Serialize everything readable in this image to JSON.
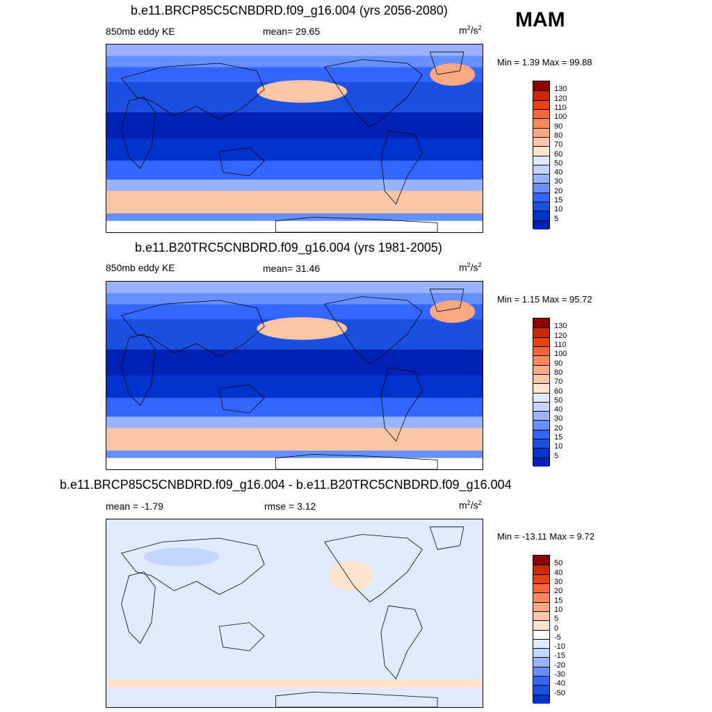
{
  "season": "MAM",
  "colors": {
    "blues": [
      "#00007f",
      "#0022b4",
      "#0033cc",
      "#1a4fe0",
      "#3366ff",
      "#6690ff",
      "#99b3ff",
      "#c3d6ff",
      "#e0ebff"
    ],
    "reds": [
      "#fde4cf",
      "#fcc6a6",
      "#fca880",
      "#fb8a5c",
      "#f8673a",
      "#ea4312",
      "#c72a05",
      "#8b0000"
    ],
    "white": "#ffffff",
    "diff_blues": [
      "#00007f",
      "#0022b4",
      "#0033cc",
      "#1a4fe0",
      "#3366ff",
      "#6690ff",
      "#99b3ff",
      "#c3d6ff",
      "#e0ebff"
    ],
    "diff_reds": [
      "#fde4cf",
      "#fcc6a6",
      "#fca880",
      "#fb8a5c",
      "#f8673a",
      "#ea4312",
      "#c72a05",
      "#8b0000"
    ]
  },
  "panels": [
    {
      "title": "b.e11.BRCP85C5CNBDRD.f09_g16.004 (yrs 2056-2080)",
      "left_label": "850mb eddy KE",
      "center_label": "mean=  29.65",
      "units_base": "m",
      "units_sup1": "2",
      "units_mid": "/s",
      "units_sup2": "2",
      "minmax": "Min =   1.39 Max =  99.88",
      "colorbar_ticks": [
        "130",
        "120",
        "110",
        "100",
        "90",
        "80",
        "70",
        "60",
        "50",
        "40",
        "30",
        "20",
        "15",
        "10",
        "5"
      ]
    },
    {
      "title": "b.e11.B20TRC5CNBDRD.f09_g16.004 (yrs 1981-2005)",
      "left_label": "850mb eddy KE",
      "center_label": "mean=  31.46",
      "units_base": "m",
      "units_sup1": "2",
      "units_mid": "/s",
      "units_sup2": "2",
      "minmax": "Min =   1.15 Max =  95.72",
      "colorbar_ticks": [
        "130",
        "120",
        "110",
        "100",
        "90",
        "80",
        "70",
        "60",
        "50",
        "40",
        "30",
        "20",
        "15",
        "10",
        "5"
      ]
    },
    {
      "title": "b.e11.BRCP85C5CNBDRD.f09_g16.004 - b.e11.B20TRC5CNBDRD.f09_g16.004",
      "left_label": "mean =  -1.79",
      "center_label": "rmse =   3.12",
      "units_base": "m",
      "units_sup1": "2",
      "units_mid": "/s",
      "units_sup2": "2",
      "minmax": "Min = -13.11 Max =   9.72",
      "colorbar_ticks": [
        "50",
        "40",
        "30",
        "20",
        "15",
        "10",
        "5",
        "0",
        "-5",
        "-10",
        "-15",
        "-20",
        "-30",
        "-40",
        "-50"
      ]
    }
  ]
}
